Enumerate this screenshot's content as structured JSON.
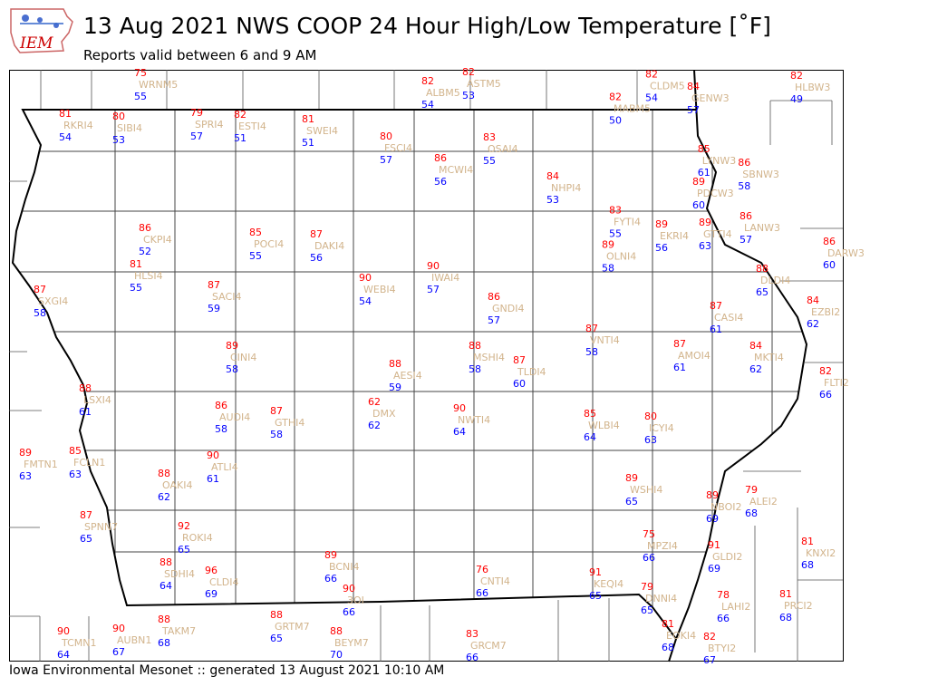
{
  "header": {
    "title": "13 Aug 2021 NWS COOP 24 Hour High/Low Temperature [$^\\circ$F]",
    "title_display": "13 Aug 2021 NWS COOP 24 Hour High/Low Temperature [˚F]",
    "subtitle": "Reports valid between 6 and 9 AM",
    "logo_text": "IEM"
  },
  "footer": {
    "text": "Iowa Environmental Mesonet :: generated 13 August 2021 10:10 AM"
  },
  "colors": {
    "high": "#ff0000",
    "low": "#0000ff",
    "station_id": "#d2b48c",
    "borders": "#000000"
  },
  "stations": [
    {
      "id": "WRNM5",
      "high": "75",
      "low": "55"
    },
    {
      "id": "RKRI4",
      "high": "81",
      "low": "54"
    },
    {
      "id": "SIBI4",
      "high": "80",
      "low": "53"
    },
    {
      "id": "SPRI4",
      "high": "79",
      "low": "57"
    },
    {
      "id": "ESTI4",
      "high": "82",
      "low": "51"
    },
    {
      "id": "SWEI4",
      "high": "81",
      "low": "51"
    },
    {
      "id": "FSCI4",
      "high": "80",
      "low": "57"
    },
    {
      "id": "ALBM5",
      "high": "82",
      "low": "54"
    },
    {
      "id": "ASTM5",
      "high": "82",
      "low": "53"
    },
    {
      "id": "MABM5",
      "high": "82",
      "low": "50"
    },
    {
      "id": "CLDM5",
      "high": "82",
      "low": "54"
    },
    {
      "id": "GENW3",
      "high": "84",
      "low": "57"
    },
    {
      "id": "HLBW3",
      "high": "82",
      "low": "49"
    },
    {
      "id": "OSAI4",
      "high": "83",
      "low": "55"
    },
    {
      "id": "MCWI4",
      "high": "86",
      "low": "56"
    },
    {
      "id": "NHPI4",
      "high": "84",
      "low": "53"
    },
    {
      "id": "LYNW3",
      "high": "85",
      "low": "61"
    },
    {
      "id": "SBNW3",
      "high": "86",
      "low": "58"
    },
    {
      "id": "PDCW3",
      "high": "89",
      "low": "60"
    },
    {
      "id": "FYTI4",
      "high": "83",
      "low": "55"
    },
    {
      "id": "EKRI4",
      "high": "89",
      "low": "56"
    },
    {
      "id": "GTTI4",
      "high": "89",
      "low": "63"
    },
    {
      "id": "LANW3",
      "high": "86",
      "low": "57"
    },
    {
      "id": "OLNI4",
      "high": "89",
      "low": "58"
    },
    {
      "id": "DARW3",
      "high": "86",
      "low": "60"
    },
    {
      "id": "CKPI4",
      "high": "86",
      "low": "52"
    },
    {
      "id": "POCI4",
      "high": "85",
      "low": "55"
    },
    {
      "id": "DAKI4",
      "high": "87",
      "low": "56"
    },
    {
      "id": "HLSI4",
      "high": "81",
      "low": "55"
    },
    {
      "id": "SXGI4",
      "high": "87",
      "low": "58"
    },
    {
      "id": "SACI4",
      "high": "87",
      "low": "59"
    },
    {
      "id": "WEBI4",
      "high": "90",
      "low": "54"
    },
    {
      "id": "IWAI4",
      "high": "90",
      "low": "57"
    },
    {
      "id": "GNDI4",
      "high": "86",
      "low": "57"
    },
    {
      "id": "DLDI4",
      "high": "88",
      "low": "65"
    },
    {
      "id": "EZBI2",
      "high": "84",
      "low": "62"
    },
    {
      "id": "CASI4",
      "high": "87",
      "low": "61"
    },
    {
      "id": "VNTI4",
      "high": "87",
      "low": "58"
    },
    {
      "id": "AMOI4",
      "high": "87",
      "low": "61"
    },
    {
      "id": "MKTI4",
      "high": "84",
      "low": "62"
    },
    {
      "id": "FLTI2",
      "high": "82",
      "low": "66"
    },
    {
      "id": "CINI4",
      "high": "89",
      "low": "58"
    },
    {
      "id": "AESI4",
      "high": "88",
      "low": "59"
    },
    {
      "id": "MSHI4",
      "high": "88",
      "low": "58"
    },
    {
      "id": "TLDI4",
      "high": "87",
      "low": "60"
    },
    {
      "id": "LSXI4",
      "high": "88",
      "low": "61"
    },
    {
      "id": "AUDI4",
      "high": "86",
      "low": "58"
    },
    {
      "id": "GTHI4",
      "high": "87",
      "low": "58"
    },
    {
      "id": "DMX",
      "high": "62",
      "low": "62"
    },
    {
      "id": "NWTI4",
      "high": "90",
      "low": "64"
    },
    {
      "id": "WLBI4",
      "high": "85",
      "low": "64"
    },
    {
      "id": "ICYI4",
      "high": "80",
      "low": "63"
    },
    {
      "id": "FMTN1",
      "high": "89",
      "low": "63"
    },
    {
      "id": "FCLN1",
      "high": "85",
      "low": "63"
    },
    {
      "id": "ATLI4",
      "high": "90",
      "low": "61"
    },
    {
      "id": "OAKI4",
      "high": "88",
      "low": "62"
    },
    {
      "id": "WSHI4",
      "high": "89",
      "low": "65"
    },
    {
      "id": "NBOI2",
      "high": "89",
      "low": "69"
    },
    {
      "id": "ALEI2",
      "high": "79",
      "low": "68"
    },
    {
      "id": "SPNN7",
      "high": "87",
      "low": "65"
    },
    {
      "id": "ROKI4",
      "high": "92",
      "low": "65"
    },
    {
      "id": "MPZI4",
      "high": "75",
      "low": "66"
    },
    {
      "id": "GLDI2",
      "high": "91",
      "low": "69"
    },
    {
      "id": "KNXI2",
      "high": "81",
      "low": "68"
    },
    {
      "id": "SDHI4",
      "high": "88",
      "low": "64"
    },
    {
      "id": "CLDI4",
      "high": "96",
      "low": "69"
    },
    {
      "id": "BCNI4",
      "high": "89",
      "low": "66"
    },
    {
      "id": "CNTI4",
      "high": "76",
      "low": "66"
    },
    {
      "id": "KEQI4",
      "high": "91",
      "low": "65"
    },
    {
      "id": "3OI",
      "high": "90",
      "low": "66"
    },
    {
      "id": "DNNI4",
      "high": "79",
      "low": "65"
    },
    {
      "id": "LAHI2",
      "high": "78",
      "low": "66"
    },
    {
      "id": "PRCI2",
      "high": "81",
      "low": "68"
    },
    {
      "id": "TAKM7",
      "high": "88",
      "low": "68"
    },
    {
      "id": "GRTM7",
      "high": "88",
      "low": "65"
    },
    {
      "id": "TCMN1",
      "high": "90",
      "low": "64"
    },
    {
      "id": "AUBN1",
      "high": "90",
      "low": "67"
    },
    {
      "id": "EOKI4",
      "high": "81",
      "low": "68"
    },
    {
      "id": "BTYI2",
      "high": "82",
      "low": "67"
    },
    {
      "id": "GRCM7",
      "high": "83",
      "low": "66"
    },
    {
      "id": "BEYM7",
      "high": "88",
      "low": "70"
    }
  ]
}
